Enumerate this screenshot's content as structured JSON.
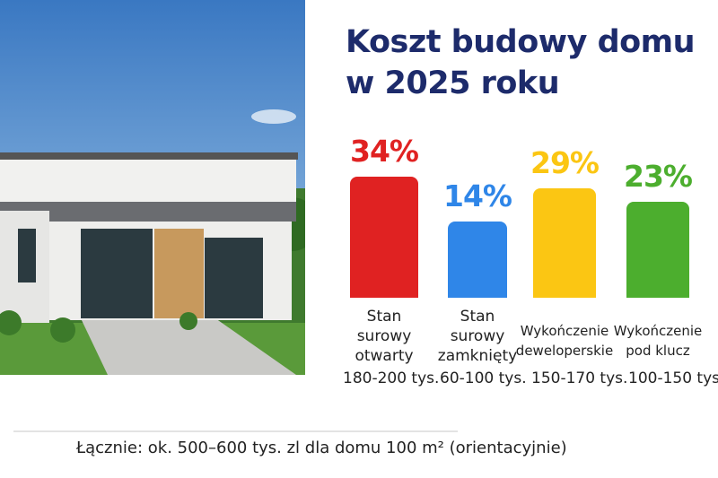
{
  "title_line1": "Koszt budowy domu",
  "title_line2": "w 2025 roku",
  "chart_data": {
    "type": "bar",
    "categories": [
      "Stan surowy otwarty",
      "Stan surowy zamknięty",
      "Wykończenie deweloperskie",
      "Wykończenie pod klucz"
    ],
    "category_lines": [
      [
        "Stan",
        "surowy",
        "otwarty"
      ],
      [
        "Stan",
        "surowy",
        "zamknięty"
      ],
      [
        "Wykończenie",
        "deweloperskie"
      ],
      [
        "Wykończenie",
        "pod klucz"
      ]
    ],
    "values": [
      34,
      14,
      29,
      23
    ],
    "value_labels": [
      "34%",
      "14%",
      "29%",
      "23%"
    ],
    "ranges": [
      "180-200 tys.",
      "60-100 tys.",
      "150-170 tys.",
      "100-150 tys."
    ],
    "colors": [
      "#e02222",
      "#2f86e8",
      "#fbc613",
      "#4cae2e"
    ],
    "title": "Koszt budowy domu w 2025 roku"
  },
  "footer": {
    "total": "Łącznie: ok. 500–600 tys. zl dla domu 100 m² (orientacyjnie)"
  }
}
